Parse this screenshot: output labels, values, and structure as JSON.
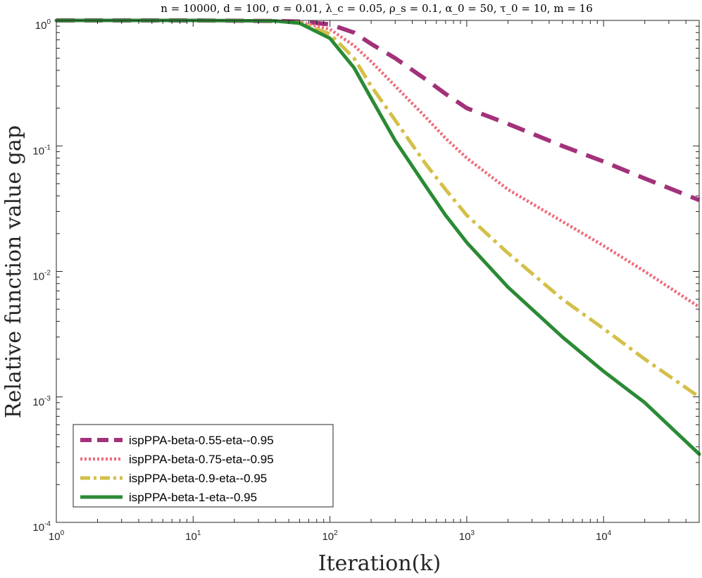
{
  "chart_data": {
    "type": "line",
    "title": "n = 10000, d = 100, σ = 0.01, λ_c = 0.05, ρ_s = 0.1, α_0 = 50, τ_0 = 10, m = 16",
    "xlabel": "Iteration(k)",
    "ylabel": "Relative function value gap",
    "xscale": "log",
    "yscale": "log",
    "xlim": [
      1,
      50000
    ],
    "ylim": [
      0.0001,
      1
    ],
    "x_ticks": [
      {
        "base": "10",
        "exp": "0",
        "value": 1
      },
      {
        "base": "10",
        "exp": "1",
        "value": 10
      },
      {
        "base": "10",
        "exp": "2",
        "value": 100
      },
      {
        "base": "10",
        "exp": "3",
        "value": 1000
      },
      {
        "base": "10",
        "exp": "4",
        "value": 10000
      }
    ],
    "y_ticks": [
      {
        "base": "10",
        "exp": "0",
        "value": 1
      },
      {
        "base": "10",
        "exp": "-1",
        "value": 0.1
      },
      {
        "base": "10",
        "exp": "-2",
        "value": 0.01
      },
      {
        "base": "10",
        "exp": "-3",
        "value": 0.001
      },
      {
        "base": "10",
        "exp": "-4",
        "value": 0.0001
      }
    ],
    "grid": false,
    "legend_position": "bottom-left",
    "series": [
      {
        "name": "ispPPA-beta-0.55-eta--0.95",
        "color": "#a2317a",
        "line_style": "dashed",
        "x": [
          1,
          10,
          40,
          60,
          100,
          150,
          200,
          300,
          500,
          700,
          1000,
          2000,
          5000,
          10000,
          20000,
          50000
        ],
        "y": [
          1,
          1,
          0.99,
          0.98,
          0.93,
          0.8,
          0.65,
          0.5,
          0.34,
          0.26,
          0.2,
          0.15,
          0.1,
          0.075,
          0.055,
          0.037
        ]
      },
      {
        "name": "ispPPA-beta-0.75-eta--0.95",
        "color": "#ef6b7b",
        "line_style": "dotted",
        "x": [
          1,
          10,
          40,
          60,
          100,
          150,
          200,
          300,
          500,
          700,
          1000,
          2000,
          5000,
          10000,
          20000,
          50000
        ],
        "y": [
          1,
          1,
          0.99,
          0.97,
          0.85,
          0.63,
          0.47,
          0.3,
          0.17,
          0.115,
          0.08,
          0.045,
          0.025,
          0.016,
          0.01,
          0.0052
        ]
      },
      {
        "name": "ispPPA-beta-0.9-eta--0.95",
        "color": "#d4bf48",
        "line_style": "dashdot",
        "x": [
          1,
          10,
          40,
          60,
          100,
          150,
          200,
          300,
          500,
          700,
          1000,
          2000,
          5000,
          10000,
          20000,
          50000
        ],
        "y": [
          1,
          1,
          0.99,
          0.96,
          0.78,
          0.5,
          0.3,
          0.16,
          0.072,
          0.045,
          0.028,
          0.014,
          0.006,
          0.0035,
          0.002,
          0.001
        ]
      },
      {
        "name": "ispPPA-beta-1-eta--0.95",
        "color": "#2b8a35",
        "line_style": "solid",
        "x": [
          1,
          10,
          40,
          60,
          100,
          150,
          200,
          300,
          500,
          700,
          1000,
          2000,
          5000,
          10000,
          20000,
          50000
        ],
        "y": [
          1,
          1,
          0.99,
          0.95,
          0.72,
          0.42,
          0.24,
          0.11,
          0.048,
          0.028,
          0.017,
          0.0075,
          0.003,
          0.0016,
          0.0009,
          0.00035
        ]
      }
    ]
  }
}
